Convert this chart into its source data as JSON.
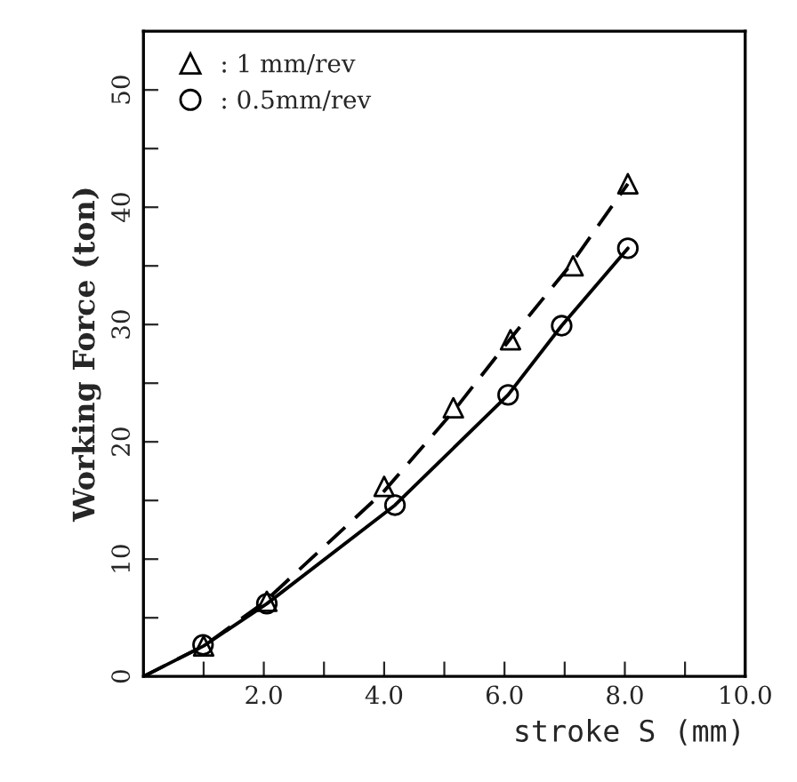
{
  "chart_data": {
    "type": "line",
    "xlabel": "stroke S (mm)",
    "ylabel": "Working Force (ton)",
    "xlim": [
      0,
      10
    ],
    "ylim": [
      0,
      55
    ],
    "xticks": [
      {
        "value": 1,
        "label": null
      },
      {
        "value": 2,
        "label": "2.0"
      },
      {
        "value": 3,
        "label": null
      },
      {
        "value": 4,
        "label": "4.0"
      },
      {
        "value": 5,
        "label": null
      },
      {
        "value": 6,
        "label": "6.0"
      },
      {
        "value": 7,
        "label": null
      },
      {
        "value": 8,
        "label": "8.0"
      },
      {
        "value": 9,
        "label": null
      },
      {
        "value": 10,
        "label": "10.0"
      }
    ],
    "yticks": [
      0,
      {
        "value": 5,
        "label": null
      },
      10,
      {
        "value": 15,
        "label": null
      },
      20,
      {
        "value": 25,
        "label": null
      },
      30,
      {
        "value": 35,
        "label": null
      },
      40,
      {
        "value": 45,
        "label": null
      },
      50
    ],
    "grid": false,
    "legend": "top left",
    "series": [
      {
        "color": "#000000",
        "line_style": "dashed",
        "marker": "none",
        "x": [
          0,
          1.0,
          2.0,
          4.0,
          5.15,
          6.1,
          7.1,
          8.05
        ],
        "values": [
          0,
          2.6,
          6.3,
          15.8,
          22.6,
          28.8,
          35.1,
          42.0
        ]
      },
      {
        "color": "#000000",
        "line_style": "solid",
        "marker": "none",
        "x": [
          0,
          1.0,
          2.05,
          4.18,
          6.06,
          6.95,
          8.05
        ],
        "values": [
          0,
          2.6,
          6.2,
          14.6,
          24.0,
          29.9,
          36.5
        ]
      },
      {
        "type": "scatter",
        "name": ": 1 mm/rev",
        "color": "#000000",
        "marker": "triangle",
        "x": [
          1.0,
          2.05,
          4.0,
          5.15,
          6.1,
          7.14,
          8.05
        ],
        "values": [
          2.6,
          6.4,
          16.2,
          22.9,
          28.7,
          35.0,
          42.0
        ]
      },
      {
        "type": "scatter",
        "name": ": 0.5mm/rev",
        "color": "#000000",
        "marker": "circle",
        "x": [
          0.99,
          2.05,
          4.18,
          6.06,
          6.95,
          8.05
        ],
        "values": [
          2.7,
          6.2,
          14.6,
          24.0,
          29.9,
          36.5
        ]
      }
    ]
  }
}
